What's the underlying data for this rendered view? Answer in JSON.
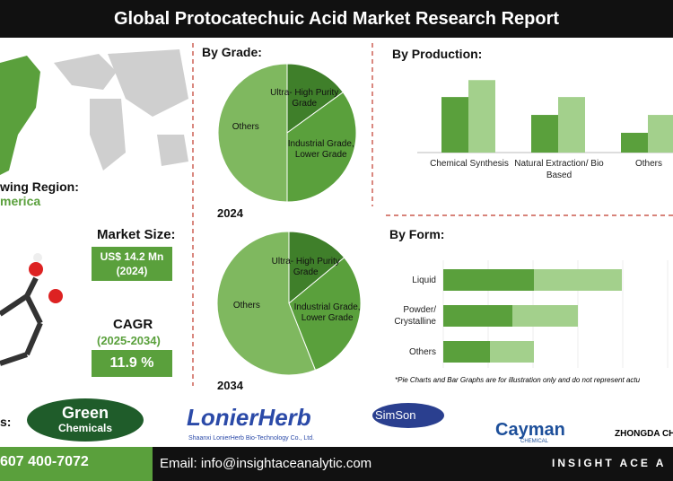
{
  "header": {
    "title": "Global Protocatechuic Acid Market Research Report"
  },
  "region": {
    "label": "wing Region:",
    "value": "merica"
  },
  "market_size": {
    "label": "Market Size:",
    "value": "US$ 14.2 Mn",
    "year": "(2024)"
  },
  "cagr": {
    "label": "CAGR",
    "period": "(2025-2034)",
    "value": "11.9 %"
  },
  "chart_data": [
    {
      "type": "pie",
      "title": "By Grade:",
      "year": "2024",
      "categories": [
        "Ultra- High Purity Grade",
        "Industrial Grade, Lower Grade",
        "Others"
      ],
      "values": [
        15,
        35,
        50
      ],
      "colors": [
        "#3f7f2a",
        "#5aa03c",
        "#7fb85f"
      ]
    },
    {
      "type": "pie",
      "year": "2034",
      "categories": [
        "Ultra- High Purity Grade",
        "Industrial Grade, Lower Grade",
        "Others"
      ],
      "values": [
        14,
        30,
        56
      ],
      "colors": [
        "#3f7f2a",
        "#5aa03c",
        "#7fb85f"
      ]
    },
    {
      "type": "bar",
      "title": "By  Production:",
      "categories": [
        "Chemical Synthesis",
        "Natural Extraction/ Bio Based",
        "Others"
      ],
      "series": [
        {
          "color": "#5aa03c",
          "values": [
            59,
            40,
            21
          ]
        },
        {
          "color": "#a3d08c",
          "values": [
            77,
            59,
            40
          ]
        }
      ]
    },
    {
      "type": "stacked-barh",
      "title": "By Form:",
      "categories": [
        "Liquid",
        "Powder/ Crystalline",
        "Others"
      ],
      "series": [
        {
          "color": "#5aa03c",
          "values": [
            101,
            77,
            52
          ]
        },
        {
          "color": "#a3d08c",
          "values": [
            98,
            73,
            49
          ]
        }
      ]
    }
  ],
  "note": "*Pie Charts and Bar Graphs are for illustration only and do not represent actu",
  "logos": {
    "label": "s:",
    "items": [
      "Green",
      "Chemicals",
      "LonierHerb",
      "Shaanxi LonierHerb Bio-Technology Co., Ltd.",
      "SimSon",
      "Cayman",
      "CHEMICAL",
      "ZHONGDA CH"
    ]
  },
  "footer": {
    "phone": "607 400-7072",
    "email": "Email: info@insightaceanalytic.com",
    "brand": "INSIGHT ACE A"
  }
}
